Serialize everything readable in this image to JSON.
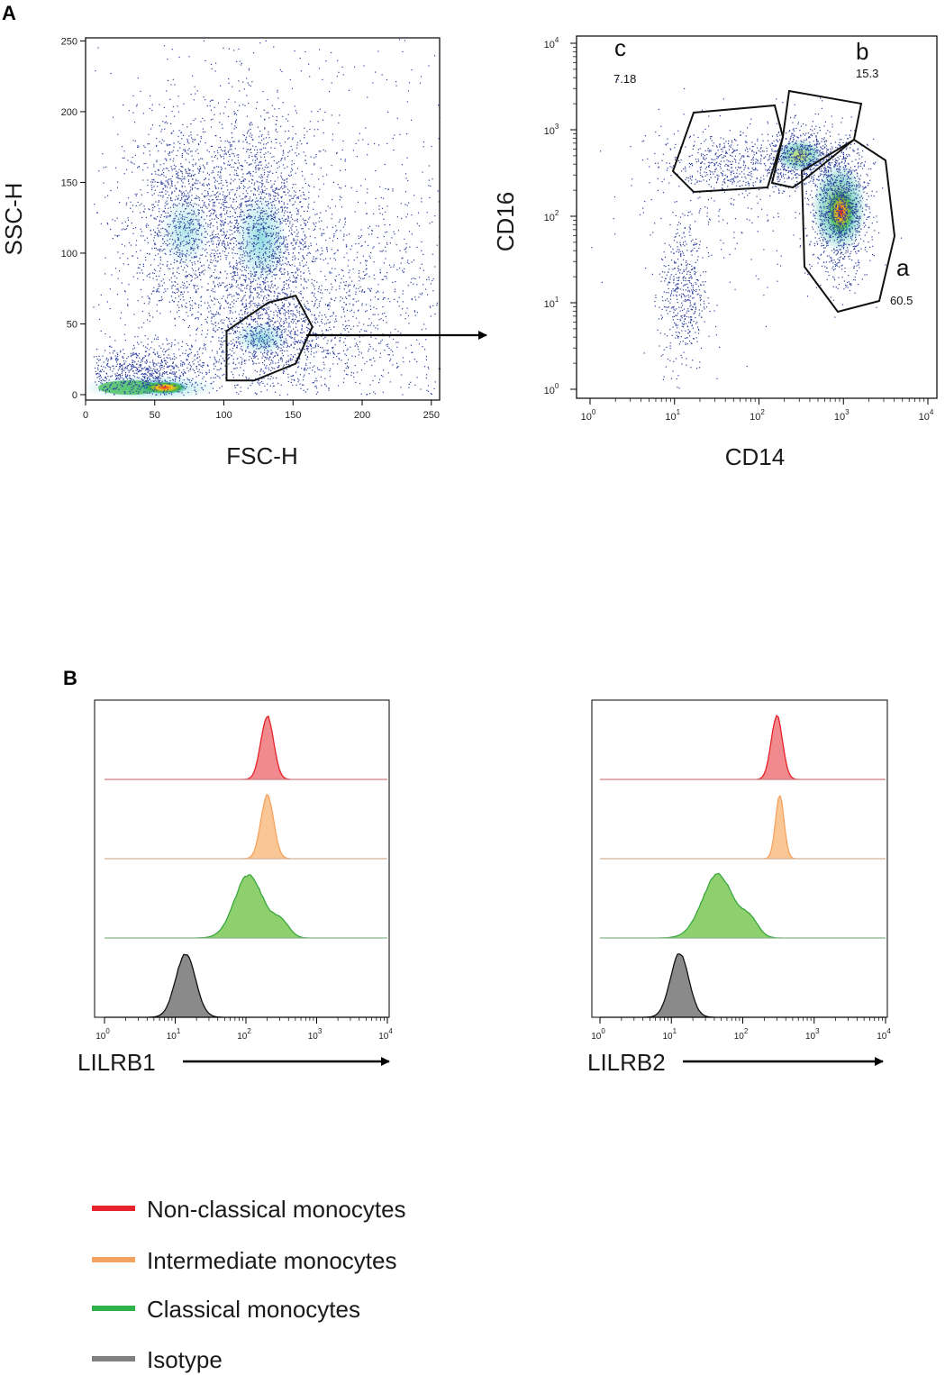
{
  "panel_a_label": "A",
  "panel_b_label": "B",
  "colors": {
    "non_classical": "#e6222a",
    "intermediate": "#f6a25f",
    "classical": "#2db34a",
    "isotype": "#808080",
    "dots": "#2b3c9c"
  },
  "chart_data": [
    {
      "id": "fsc-ssc",
      "type": "scatter",
      "xlabel": "FSC-H",
      "ylabel": "SSC-H",
      "xlim": [
        0,
        256
      ],
      "ylim": [
        0,
        256
      ],
      "x_ticks": [
        "0",
        "50",
        "100",
        "150",
        "200",
        "250"
      ],
      "y_ticks": [
        "0",
        "50",
        "100",
        "150",
        "200",
        "250"
      ],
      "gate_polygon": [
        [
          100,
          10
        ],
        [
          100,
          45
        ],
        [
          130,
          65
        ],
        [
          150,
          70
        ],
        [
          162,
          48
        ],
        [
          150,
          22
        ],
        [
          120,
          10
        ]
      ]
    },
    {
      "id": "cd14-cd16",
      "type": "scatter",
      "scale": "log",
      "xlabel": "CD14",
      "ylabel": "CD16",
      "xlim": [
        1,
        10000
      ],
      "ylim": [
        1,
        10000
      ],
      "x_ticks": [
        "10",
        "10",
        "10",
        "10",
        "10"
      ],
      "y_ticks": [
        "10",
        "10",
        "10",
        "10",
        "10"
      ],
      "tick_exponents": [
        "0",
        "1",
        "2",
        "3",
        "4"
      ],
      "gates": [
        {
          "label": "c",
          "percent": "7.18"
        },
        {
          "label": "b",
          "percent": "15.3"
        },
        {
          "label": "a",
          "percent": "60.5"
        }
      ]
    },
    {
      "id": "lilrb1",
      "type": "area",
      "scale": "log",
      "xlabel": "LILRB1",
      "xlim": [
        1,
        10000
      ],
      "x_ticks": [
        "10",
        "10",
        "10",
        "10",
        "10"
      ],
      "tick_exponents": [
        "0",
        "1",
        "2",
        "3",
        "4"
      ],
      "series": [
        {
          "name": "Non-classical monocytes",
          "peak": 200
        },
        {
          "name": "Intermediate monocytes",
          "peak": 200
        },
        {
          "name": "Classical monocytes",
          "peak": 110
        },
        {
          "name": "Isotype",
          "peak": 14
        }
      ]
    },
    {
      "id": "lilrb2",
      "type": "area",
      "scale": "log",
      "xlabel": "LILRB2",
      "xlim": [
        1,
        10000
      ],
      "x_ticks": [
        "10",
        "10",
        "10",
        "10",
        "10"
      ],
      "tick_exponents": [
        "0",
        "1",
        "2",
        "3",
        "4"
      ],
      "series": [
        {
          "name": "Non-classical monocytes",
          "peak": 300
        },
        {
          "name": "Intermediate monocytes",
          "peak": 330
        },
        {
          "name": "Classical monocytes",
          "peak": 45
        },
        {
          "name": "Isotype",
          "peak": 13
        }
      ]
    }
  ],
  "legend": {
    "placement": "bottom-left",
    "items": [
      {
        "label": "Non-classical monocytes",
        "color_key": "non_classical"
      },
      {
        "label": "Intermediate monocytes",
        "color_key": "intermediate"
      },
      {
        "label": "Classical monocytes",
        "color_key": "classical"
      },
      {
        "label": "Isotype",
        "color_key": "isotype"
      }
    ]
  }
}
